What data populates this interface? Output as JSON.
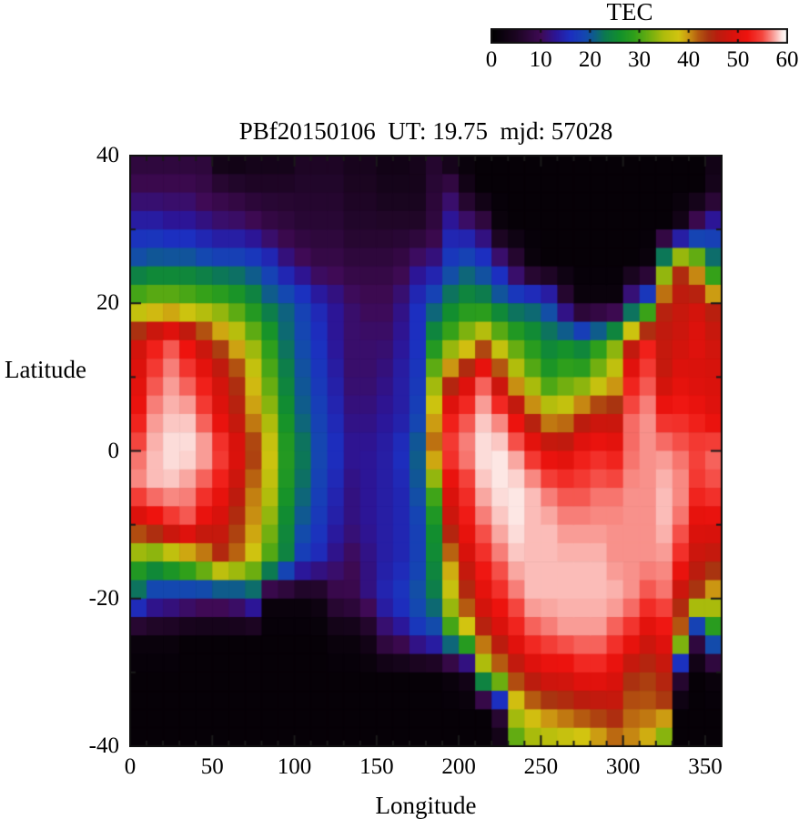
{
  "colorbar": {
    "title": "TEC",
    "min": 0,
    "max": 60,
    "tick_labels": [
      "0",
      "10",
      "20",
      "30",
      "40",
      "50",
      "60"
    ]
  },
  "plot": {
    "title": "PBf20150106  UT: 19.75  mjd: 57028",
    "xlabel": "Longitude",
    "ylabel": "Latitude",
    "x_tick_labels": [
      "0",
      "50",
      "100",
      "150",
      "200",
      "250",
      "300",
      "350"
    ],
    "y_tick_labels": [
      "40",
      "20",
      "0",
      "-20",
      "-40"
    ]
  },
  "chart_data": {
    "type": "heatmap",
    "title": "PBf20150106  UT: 19.75  mjd: 57028",
    "xlabel": "Longitude",
    "ylabel": "Latitude",
    "colorbar_label": "TEC",
    "xlim": [
      0,
      360
    ],
    "ylim": [
      -40,
      40
    ],
    "clim": [
      0,
      60
    ],
    "x_ticks_major": [
      0,
      50,
      100,
      150,
      200,
      250,
      300,
      350
    ],
    "x_ticks_minor_step": 10,
    "y_ticks_major": [
      40,
      20,
      0,
      -20,
      -40
    ],
    "y_ticks_minor_step": 10,
    "grid": false,
    "lon": [
      0,
      10,
      20,
      30,
      40,
      50,
      60,
      70,
      80,
      90,
      100,
      110,
      120,
      130,
      140,
      150,
      160,
      170,
      180,
      190,
      200,
      210,
      220,
      230,
      240,
      250,
      260,
      270,
      280,
      290,
      300,
      310,
      320,
      330,
      340,
      350
    ],
    "lat": [
      40,
      35,
      30,
      25,
      20,
      15,
      10,
      5,
      0,
      -5,
      -10,
      -15,
      -20,
      -25,
      -30,
      -35,
      -40
    ],
    "tec_values": [
      [
        7,
        7,
        7,
        7,
        7,
        2,
        2,
        3,
        3,
        3,
        5,
        5,
        5,
        4,
        4,
        3,
        3,
        4,
        6,
        2,
        1,
        1,
        1,
        1,
        1,
        1,
        1,
        1,
        1,
        1,
        1,
        1,
        1,
        1,
        1,
        3
      ],
      [
        10,
        10,
        10,
        10,
        9,
        8,
        7,
        6,
        6,
        6,
        6,
        6,
        6,
        5,
        5,
        4,
        4,
        4,
        7,
        10,
        4,
        1,
        1,
        1,
        1,
        1,
        1,
        1,
        1,
        1,
        1,
        1,
        1,
        1,
        1,
        4
      ],
      [
        15,
        15,
        14,
        14,
        13,
        12,
        12,
        11,
        9,
        8,
        7,
        7,
        7,
        6,
        6,
        6,
        6,
        6,
        8,
        14,
        13,
        10,
        2,
        1,
        1,
        1,
        1,
        1,
        1,
        1,
        1,
        1,
        1,
        4,
        12,
        16
      ],
      [
        21,
        22,
        22,
        22,
        21,
        20,
        20,
        19,
        17,
        13,
        11,
        9,
        9,
        8,
        8,
        8,
        9,
        12,
        13,
        18,
        20,
        18,
        14,
        8,
        2,
        1,
        1,
        1,
        1,
        1,
        1,
        2,
        30,
        44,
        38,
        24
      ],
      [
        33,
        34,
        34,
        33,
        32,
        31,
        29,
        26,
        22,
        21,
        18,
        15,
        13,
        11,
        10,
        10,
        12,
        16,
        20,
        24,
        26,
        25,
        22,
        20,
        20,
        18,
        8,
        2,
        2,
        2,
        15,
        22,
        45,
        47,
        48,
        45
      ],
      [
        48,
        52,
        55,
        51,
        46,
        42,
        38,
        33,
        28,
        22,
        19,
        16,
        13,
        11,
        11,
        11,
        13,
        16,
        26,
        31,
        35,
        39,
        34,
        30,
        27,
        24,
        25,
        23,
        27,
        32,
        45,
        52,
        47,
        48,
        50,
        48
      ],
      [
        50,
        55,
        57,
        55,
        52,
        48,
        44,
        38,
        31,
        24,
        20,
        17,
        14,
        11,
        11,
        12,
        14,
        17,
        33,
        43,
        48,
        55,
        45,
        37,
        32,
        28,
        30,
        30,
        34,
        38,
        52,
        55,
        47,
        50,
        49,
        49
      ],
      [
        52,
        57,
        58,
        58,
        55,
        50,
        46,
        40,
        34,
        26,
        21,
        18,
        15,
        12,
        12,
        13,
        14,
        18,
        39,
        52,
        55,
        58,
        56,
        50,
        43,
        38,
        39,
        44,
        46,
        46,
        56,
        57,
        53,
        53,
        52,
        50
      ],
      [
        56,
        58,
        59,
        59,
        58,
        55,
        50,
        44,
        38,
        28,
        23,
        19,
        16,
        13,
        13,
        14,
        16,
        21,
        42,
        55,
        57,
        59,
        59,
        57,
        53,
        50,
        49,
        52,
        53,
        52,
        56,
        57,
        57,
        56,
        55,
        56
      ],
      [
        57,
        58,
        58,
        57,
        55,
        52,
        47,
        41,
        36,
        27,
        22,
        18,
        15,
        12,
        13,
        14,
        15,
        20,
        31,
        50,
        54,
        58,
        59,
        59,
        58,
        56,
        55,
        55,
        56,
        56,
        57,
        57,
        58,
        57,
        54,
        55
      ],
      [
        47,
        50,
        53,
        55,
        50,
        48,
        44,
        40,
        33,
        25,
        20,
        17,
        14,
        12,
        13,
        14,
        15,
        18,
        26,
        47,
        52,
        56,
        58,
        59,
        58,
        58,
        57,
        57,
        57,
        57,
        57,
        57,
        58,
        56,
        50,
        50
      ],
      [
        30,
        28,
        31,
        34,
        38,
        44,
        41,
        37,
        30,
        24,
        17,
        15,
        12,
        10,
        12,
        14,
        15,
        18,
        25,
        40,
        48,
        53,
        56,
        58,
        58,
        58,
        58,
        58,
        58,
        57,
        57,
        57,
        57,
        53,
        47,
        46
      ],
      [
        20,
        16,
        15,
        14,
        13,
        13,
        14,
        17,
        2,
        2,
        2,
        3,
        8,
        9,
        12,
        15,
        17,
        20,
        23,
        36,
        44,
        50,
        53,
        56,
        58,
        58,
        58,
        58,
        58,
        58,
        57,
        55,
        56,
        46,
        43,
        38
      ],
      [
        2,
        2,
        2,
        1,
        1,
        1,
        1,
        1,
        1,
        1,
        1,
        1,
        2,
        2,
        4,
        10,
        12,
        16,
        18,
        28,
        36,
        44,
        48,
        52,
        55,
        56,
        57,
        57,
        57,
        55,
        53,
        49,
        51,
        41,
        10,
        25
      ],
      [
        1,
        1,
        1,
        1,
        1,
        1,
        1,
        1,
        1,
        1,
        1,
        1,
        1,
        1,
        1,
        1,
        1,
        1,
        1,
        2,
        4,
        32,
        40,
        45,
        48,
        50,
        50,
        52,
        52,
        50,
        45,
        44,
        46,
        8,
        1,
        2
      ],
      [
        1,
        1,
        1,
        1,
        1,
        1,
        1,
        1,
        1,
        1,
        1,
        1,
        1,
        1,
        1,
        1,
        1,
        1,
        1,
        1,
        1,
        1,
        8,
        36,
        40,
        42,
        43,
        44,
        45,
        46,
        42,
        42,
        43,
        1,
        1,
        1
      ],
      [
        1,
        1,
        1,
        1,
        1,
        1,
        1,
        1,
        1,
        1,
        1,
        1,
        1,
        1,
        1,
        1,
        1,
        1,
        1,
        1,
        1,
        1,
        2,
        30,
        33,
        34,
        35,
        36,
        38,
        40,
        40,
        38,
        30,
        1,
        1,
        1
      ]
    ],
    "palette_stops": [
      [
        0,
        "#000000"
      ],
      [
        5,
        "#1c0522"
      ],
      [
        10,
        "#3f0a55"
      ],
      [
        13,
        "#2c1596"
      ],
      [
        16,
        "#1c2fc0"
      ],
      [
        19,
        "#1448b0"
      ],
      [
        21,
        "#0e5f86"
      ],
      [
        23,
        "#0c7a50"
      ],
      [
        26,
        "#12902c"
      ],
      [
        29,
        "#30a01a"
      ],
      [
        32,
        "#6cae10"
      ],
      [
        35,
        "#aebc0c"
      ],
      [
        38,
        "#d2c410"
      ],
      [
        40,
        "#cb9612"
      ],
      [
        42,
        "#b55a10"
      ],
      [
        44,
        "#a93410"
      ],
      [
        46,
        "#bb1c0e"
      ],
      [
        49,
        "#d8120c"
      ],
      [
        52,
        "#ee130e"
      ],
      [
        55,
        "#f4453e"
      ],
      [
        57,
        "#f8918b"
      ],
      [
        59,
        "#fde7e4"
      ],
      [
        60,
        "#ffffff"
      ]
    ]
  }
}
